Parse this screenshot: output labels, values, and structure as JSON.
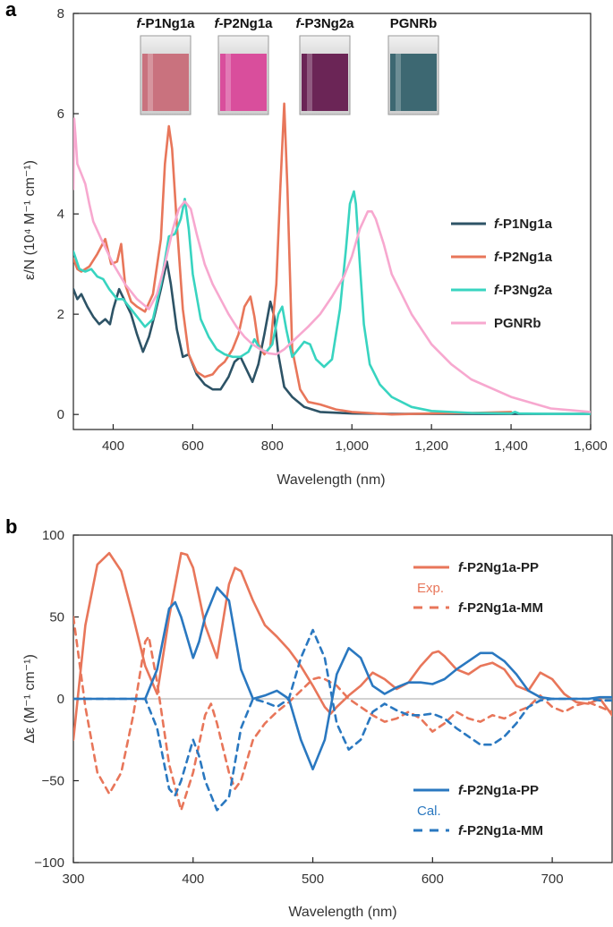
{
  "chart_data": [
    {
      "panel": "a",
      "type": "line",
      "xlabel": "Wavelength (nm)",
      "ylabel": "ε/N (10⁴ M⁻¹ cm⁻¹)",
      "xlim": [
        300,
        1600
      ],
      "ylim": [
        -0.3,
        8
      ],
      "xticks": [
        400,
        600,
        800,
        1000,
        1200,
        1400,
        1600
      ],
      "xtick_labels": [
        "400",
        "600",
        "800",
        "1,000",
        "1,200",
        "1,400",
        "1,600"
      ],
      "yticks": [
        0,
        2,
        4,
        6,
        8
      ],
      "ytick_labels": [
        "0",
        "2",
        "4",
        "6",
        "8"
      ],
      "vials": [
        {
          "label": "f-P1Ng1a",
          "color": "#c9727e"
        },
        {
          "label": "f-P2Ng1a",
          "color": "#d94e9c"
        },
        {
          "label": "f-P3Ng2a",
          "color": "#6b2556"
        },
        {
          "label": "PGNRb",
          "color": "#3d6872"
        }
      ],
      "series": [
        {
          "name": "f-P1Ng1a",
          "color": "#2d5366",
          "x": [
            300,
            310,
            320,
            335,
            350,
            365,
            380,
            392,
            400,
            415,
            430,
            445,
            460,
            475,
            490,
            505,
            520,
            535,
            545,
            560,
            575,
            590,
            610,
            630,
            650,
            670,
            690,
            705,
            720,
            735,
            750,
            765,
            780,
            795,
            805,
            815,
            830,
            850,
            880,
            920,
            1000,
            1100,
            1200,
            1300,
            1400,
            1500,
            1600
          ],
          "y": [
            2.5,
            2.3,
            2.4,
            2.15,
            1.95,
            1.8,
            1.9,
            1.8,
            2.1,
            2.5,
            2.25,
            2.0,
            1.6,
            1.25,
            1.55,
            2.0,
            2.5,
            3.05,
            2.6,
            1.7,
            1.15,
            1.2,
            0.8,
            0.6,
            0.5,
            0.5,
            0.75,
            1.05,
            1.15,
            0.9,
            0.65,
            1.0,
            1.6,
            2.25,
            1.95,
            1.2,
            0.55,
            0.35,
            0.15,
            0.05,
            0.02,
            0.01,
            0.01,
            0.01,
            0.01,
            0.01,
            0.01
          ]
        },
        {
          "name": "f-P2Ng1a",
          "color": "#e8765a",
          "x": [
            300,
            310,
            320,
            340,
            360,
            380,
            395,
            410,
            420,
            430,
            445,
            460,
            480,
            500,
            520,
            530,
            540,
            548,
            560,
            575,
            590,
            610,
            630,
            650,
            665,
            680,
            700,
            715,
            730,
            745,
            755,
            765,
            780,
            795,
            810,
            820,
            830,
            838,
            850,
            870,
            890,
            920,
            960,
            1000,
            1100,
            1200,
            1300,
            1400
          ],
          "y": [
            3.1,
            2.9,
            2.85,
            2.95,
            3.2,
            3.5,
            3.0,
            3.05,
            3.4,
            2.6,
            2.25,
            2.15,
            2.05,
            2.4,
            3.5,
            5.0,
            5.75,
            5.3,
            3.8,
            2.1,
            1.2,
            0.85,
            0.75,
            0.8,
            0.95,
            1.05,
            1.3,
            1.6,
            2.15,
            2.35,
            1.95,
            1.4,
            1.2,
            1.35,
            2.6,
            4.5,
            6.2,
            4.5,
            1.3,
            0.5,
            0.25,
            0.2,
            0.1,
            0.05,
            0.0,
            0.02,
            0.03,
            0.05
          ]
        },
        {
          "name": "f-P3Ng2a",
          "color": "#38d4c0",
          "x": [
            300,
            315,
            330,
            345,
            360,
            375,
            390,
            410,
            425,
            440,
            460,
            480,
            500,
            520,
            540,
            555,
            570,
            580,
            590,
            600,
            620,
            640,
            660,
            680,
            700,
            720,
            740,
            755,
            770,
            785,
            800,
            815,
            825,
            835,
            850,
            865,
            880,
            895,
            910,
            930,
            950,
            970,
            985,
            995,
            1005,
            1010,
            1020,
            1030,
            1045,
            1070,
            1100,
            1150,
            1200,
            1300,
            1400,
            1410,
            1420,
            1500,
            1600
          ],
          "y": [
            3.25,
            2.9,
            2.85,
            2.9,
            2.75,
            2.7,
            2.5,
            2.3,
            2.3,
            2.15,
            1.95,
            1.75,
            1.9,
            2.6,
            3.55,
            3.6,
            3.9,
            4.3,
            3.7,
            2.8,
            1.9,
            1.55,
            1.3,
            1.2,
            1.15,
            1.15,
            1.25,
            1.5,
            1.3,
            1.25,
            1.4,
            2.0,
            2.15,
            1.7,
            1.15,
            1.3,
            1.45,
            1.4,
            1.1,
            0.95,
            1.1,
            2.1,
            3.3,
            4.2,
            4.45,
            4.2,
            3.0,
            1.8,
            1.0,
            0.6,
            0.35,
            0.15,
            0.07,
            0.03,
            0.02,
            0.05,
            0.02,
            0.01,
            0.01
          ]
        },
        {
          "name": "PGNRb",
          "color": "#f7a8cf",
          "x": [
            300,
            302,
            305,
            310,
            320,
            330,
            340,
            350,
            370,
            400,
            430,
            460,
            490,
            510,
            530,
            550,
            565,
            580,
            595,
            610,
            630,
            650,
            670,
            690,
            710,
            730,
            750,
            770,
            790,
            810,
            830,
            850,
            870,
            890,
            920,
            950,
            980,
            1000,
            1020,
            1040,
            1050,
            1060,
            1080,
            1100,
            1150,
            1200,
            1250,
            1300,
            1400,
            1500,
            1600
          ],
          "y": [
            4.5,
            5.9,
            5.6,
            5.0,
            4.8,
            4.6,
            4.2,
            3.85,
            3.5,
            3.0,
            2.6,
            2.3,
            2.1,
            2.4,
            3.0,
            3.7,
            4.1,
            4.25,
            4.1,
            3.6,
            3.0,
            2.6,
            2.3,
            2.0,
            1.75,
            1.55,
            1.4,
            1.3,
            1.22,
            1.2,
            1.3,
            1.45,
            1.6,
            1.75,
            2.0,
            2.35,
            2.75,
            3.15,
            3.7,
            4.05,
            4.05,
            3.9,
            3.4,
            2.8,
            2.0,
            1.4,
            1.0,
            0.7,
            0.35,
            0.12,
            0.05
          ]
        }
      ]
    },
    {
      "panel": "b",
      "type": "line",
      "xlabel": "Wavelength (nm)",
      "ylabel": "Δε (M⁻¹ cm⁻¹)",
      "xlim": [
        300,
        750
      ],
      "ylim": [
        -100,
        100
      ],
      "xticks": [
        300,
        400,
        500,
        600,
        700
      ],
      "xtick_labels": [
        "300",
        "400",
        "500",
        "600",
        "700"
      ],
      "yticks": [
        -100,
        -50,
        0,
        50,
        100
      ],
      "ytick_labels": [
        "−100",
        "−50",
        "0",
        "50",
        "100"
      ],
      "legend_groups": [
        {
          "group_label": "Exp.",
          "color": "#e8765a",
          "entries": [
            {
              "label": "f-P2Ng1a-PP",
              "style": "solid"
            },
            {
              "label": "f-P2Ng1a-MM",
              "style": "dashed"
            }
          ]
        },
        {
          "group_label": "Cal.",
          "color": "#2a78c0",
          "entries": [
            {
              "label": "f-P2Ng1a-PP",
              "style": "solid"
            },
            {
              "label": "f-P2Ng1a-MM",
              "style": "dashed"
            }
          ]
        }
      ],
      "series": [
        {
          "name": "f-P2Ng1a-PP (Exp.)",
          "color": "#e8765a",
          "dash": false,
          "x": [
            300,
            310,
            320,
            330,
            340,
            350,
            360,
            370,
            380,
            390,
            395,
            400,
            410,
            420,
            430,
            435,
            440,
            450,
            460,
            470,
            480,
            490,
            500,
            510,
            515,
            520,
            530,
            540,
            550,
            560,
            570,
            580,
            590,
            600,
            605,
            610,
            620,
            630,
            640,
            650,
            660,
            670,
            680,
            690,
            700,
            710,
            720,
            730,
            740,
            750
          ],
          "y": [
            -25,
            45,
            82,
            89,
            78,
            50,
            20,
            3,
            50,
            89,
            88,
            80,
            45,
            25,
            70,
            80,
            78,
            60,
            45,
            38,
            30,
            20,
            8,
            -5,
            -9,
            -5,
            2,
            8,
            16,
            12,
            6,
            10,
            20,
            28,
            29,
            26,
            18,
            15,
            20,
            22,
            18,
            8,
            5,
            16,
            12,
            3,
            -2,
            -3,
            0,
            -10
          ]
        },
        {
          "name": "f-P2Ng1a-MM (Exp.)",
          "color": "#e8765a",
          "dash": true,
          "x": [
            300,
            310,
            320,
            330,
            340,
            350,
            360,
            363,
            370,
            380,
            390,
            400,
            410,
            415,
            420,
            430,
            435,
            440,
            450,
            460,
            470,
            480,
            490,
            500,
            505,
            510,
            520,
            530,
            540,
            550,
            560,
            570,
            580,
            590,
            600,
            610,
            620,
            630,
            640,
            650,
            660,
            670,
            680,
            690,
            700,
            710,
            720,
            730,
            740,
            750
          ],
          "y": [
            50,
            -5,
            -45,
            -58,
            -45,
            -10,
            35,
            38,
            10,
            -40,
            -68,
            -45,
            -10,
            -3,
            -15,
            -45,
            -55,
            -50,
            -25,
            -15,
            -8,
            -2,
            5,
            12,
            13,
            12,
            8,
            0,
            -5,
            -10,
            -14,
            -12,
            -8,
            -12,
            -20,
            -15,
            -8,
            -12,
            -14,
            -10,
            -12,
            -8,
            -5,
            2,
            -5,
            -8,
            -4,
            -2,
            -5,
            -8
          ]
        },
        {
          "name": "f-P2Ng1a-PP (Cal.)",
          "color": "#2a78c0",
          "dash": false,
          "x": [
            300,
            320,
            340,
            350,
            360,
            370,
            380,
            385,
            390,
            400,
            405,
            410,
            420,
            430,
            440,
            450,
            460,
            470,
            480,
            490,
            500,
            510,
            520,
            530,
            540,
            550,
            560,
            570,
            580,
            590,
            600,
            610,
            620,
            630,
            640,
            650,
            660,
            670,
            680,
            690,
            700,
            710,
            720,
            730,
            740,
            750
          ],
          "y": [
            0,
            0,
            0,
            0,
            0,
            18,
            55,
            59,
            50,
            25,
            35,
            50,
            68,
            60,
            18,
            0,
            2,
            5,
            0,
            -25,
            -43,
            -25,
            15,
            31,
            25,
            8,
            3,
            7,
            10,
            10,
            9,
            12,
            18,
            23,
            28,
            28,
            23,
            15,
            5,
            1,
            0,
            0,
            0,
            0,
            1,
            1
          ]
        },
        {
          "name": "f-P2Ng1a-MM (Cal.)",
          "color": "#2a78c0",
          "dash": true,
          "x": [
            300,
            320,
            340,
            350,
            360,
            370,
            380,
            385,
            390,
            400,
            405,
            410,
            420,
            430,
            440,
            450,
            460,
            470,
            480,
            490,
            500,
            510,
            520,
            530,
            540,
            550,
            560,
            570,
            580,
            590,
            600,
            610,
            620,
            630,
            640,
            650,
            660,
            670,
            680,
            690,
            700,
            710,
            720,
            730,
            740,
            750
          ],
          "y": [
            0,
            0,
            0,
            0,
            0,
            -18,
            -55,
            -59,
            -50,
            -25,
            -35,
            -50,
            -68,
            -60,
            -18,
            0,
            -2,
            -5,
            0,
            25,
            42,
            25,
            -15,
            -31,
            -25,
            -8,
            -3,
            -7,
            -10,
            -10,
            -9,
            -12,
            -18,
            -23,
            -28,
            -28,
            -23,
            -15,
            -5,
            -1,
            0,
            0,
            0,
            0,
            -1,
            -1
          ]
        }
      ]
    }
  ]
}
